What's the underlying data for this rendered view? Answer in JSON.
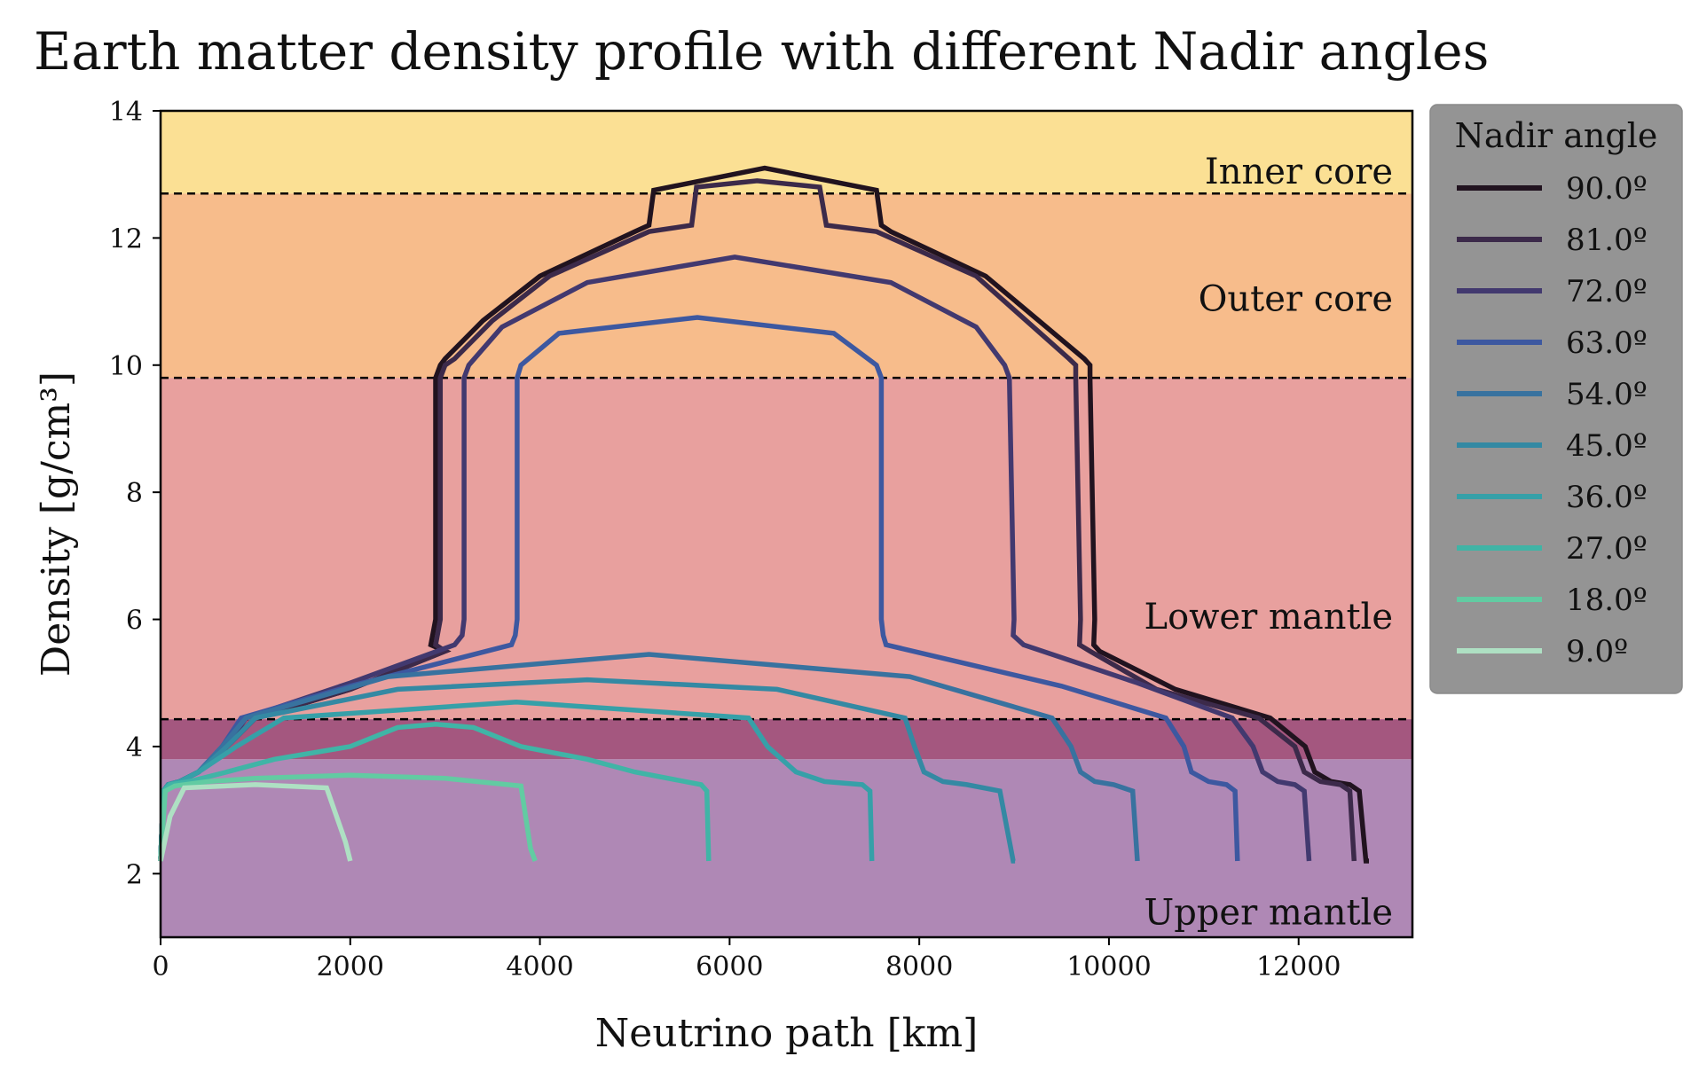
{
  "chart_data": {
    "type": "line",
    "title": "Earth matter density profile with different Nadir angles",
    "xlabel": "Neutrino path [km]",
    "ylabel": "Density [g/cm³]",
    "xlim": [
      0,
      13200
    ],
    "ylim": [
      1,
      14
    ],
    "xticks": [
      0,
      2000,
      4000,
      6000,
      8000,
      10000,
      12000
    ],
    "yticks": [
      2,
      4,
      6,
      8,
      10,
      12,
      14
    ],
    "grid": false,
    "legend": {
      "title": "Nadir angle",
      "placement": "outside-right"
    },
    "layers": [
      {
        "name": "Upper mantle",
        "ymin": 1,
        "ymax": 3.8,
        "color": "#af88b5"
      },
      {
        "name": "",
        "ymin": 3.8,
        "ymax": 4.43,
        "color": "#a4577f"
      },
      {
        "name": "Lower mantle",
        "ymin": 4.43,
        "ymax": 9.8,
        "color": "#e8a09e"
      },
      {
        "name": "Outer core",
        "ymin": 9.8,
        "ymax": 12.7,
        "color": "#f7bc8b"
      },
      {
        "name": "Inner core",
        "ymin": 12.7,
        "ymax": 14,
        "color": "#fbe094"
      }
    ],
    "boundaries": [
      4.43,
      9.8,
      12.7
    ],
    "series": [
      {
        "name": "90.0º",
        "color": "#21131f",
        "x": [
          0,
          30,
          80,
          200,
          400,
          700,
          1000,
          2000,
          3000,
          2850,
          2900,
          2900,
          2950,
          3000,
          3400,
          4000,
          5000,
          5150,
          5200,
          6370,
          7550,
          7600,
          7700,
          8700,
          9740,
          9800,
          9800,
          9850,
          9840,
          9900,
          10700,
          11700,
          12070,
          12170,
          12340,
          12540,
          12640,
          12710,
          12742
        ],
        "y": [
          2.2,
          3.3,
          3.4,
          3.45,
          3.6,
          4.0,
          4.45,
          4.9,
          5.5,
          5.6,
          6.0,
          9.8,
          10.0,
          10.1,
          10.7,
          11.4,
          12.1,
          12.2,
          12.75,
          13.1,
          12.75,
          12.2,
          12.1,
          11.4,
          10.1,
          10.0,
          9.8,
          6.0,
          5.6,
          5.5,
          4.9,
          4.45,
          4.0,
          3.6,
          3.45,
          3.4,
          3.3,
          2.2,
          2.2
        ]
      },
      {
        "name": "81.0º",
        "color": "#3c2a4a",
        "x": [
          0,
          30,
          80,
          200,
          400,
          700,
          1000,
          2000,
          3000,
          2900,
          2950,
          2950,
          3000,
          3100,
          3500,
          4100,
          5150,
          5600,
          5650,
          6290,
          6950,
          7020,
          7550,
          8600,
          9580,
          9650,
          9650,
          9700,
          9690,
          9800,
          10500,
          11580,
          11960,
          12060,
          12230,
          12440,
          12540,
          12585
        ],
        "y": [
          2.2,
          3.3,
          3.4,
          3.45,
          3.6,
          4.0,
          4.45,
          4.9,
          5.5,
          5.6,
          6.0,
          9.8,
          10.0,
          10.1,
          10.7,
          11.4,
          12.1,
          12.2,
          12.8,
          12.9,
          12.8,
          12.2,
          12.1,
          11.4,
          10.1,
          10.0,
          9.8,
          6.0,
          5.6,
          5.5,
          4.9,
          4.45,
          4.0,
          3.6,
          3.45,
          3.4,
          3.3,
          2.2
        ]
      },
      {
        "name": "72.0º",
        "color": "#42396f",
        "x": [
          0,
          30,
          80,
          200,
          400,
          700,
          900,
          2000,
          3100,
          3180,
          3200,
          3200,
          3250,
          3600,
          4500,
          6055,
          7700,
          8600,
          8900,
          8950,
          8950,
          9000,
          8990,
          9100,
          10300,
          11300,
          11520,
          11620,
          11780,
          11960,
          12060,
          12110
        ],
        "y": [
          2.2,
          3.3,
          3.4,
          3.45,
          3.6,
          4.0,
          4.45,
          5.0,
          5.6,
          5.75,
          6.0,
          9.8,
          10.0,
          10.6,
          11.3,
          11.7,
          11.3,
          10.6,
          10.0,
          9.8,
          9.8,
          6.0,
          5.75,
          5.6,
          5.0,
          4.45,
          4.0,
          3.6,
          3.45,
          3.4,
          3.3,
          2.2
        ]
      },
      {
        "name": "63.0º",
        "color": "#3d58a0",
        "x": [
          0,
          30,
          80,
          200,
          400,
          650,
          850,
          2000,
          3700,
          3740,
          3760,
          3760,
          3800,
          4200,
          5660,
          7100,
          7550,
          7600,
          7600,
          7620,
          7650,
          9500,
          10600,
          10790,
          10870,
          11050,
          11240,
          11330,
          11355
        ],
        "y": [
          2.2,
          3.3,
          3.4,
          3.45,
          3.6,
          4.0,
          4.45,
          4.95,
          5.6,
          5.75,
          6.0,
          9.8,
          10.0,
          10.5,
          10.75,
          10.5,
          10.0,
          9.8,
          6.0,
          5.75,
          5.6,
          4.95,
          4.45,
          4.0,
          3.6,
          3.45,
          3.4,
          3.3,
          2.2
        ]
      },
      {
        "name": "54.0º",
        "color": "#38729f",
        "x": [
          0,
          30,
          80,
          200,
          400,
          650,
          900,
          2400,
          5150,
          7900,
          9400,
          9600,
          9700,
          9850,
          10050,
          10250,
          10300,
          10300
        ],
        "y": [
          2.2,
          3.3,
          3.4,
          3.45,
          3.6,
          4.0,
          4.45,
          5.1,
          5.45,
          5.1,
          4.45,
          4.0,
          3.6,
          3.45,
          3.4,
          3.3,
          2.2,
          2.2
        ]
      },
      {
        "name": "45.0º",
        "color": "#3489a3",
        "x": [
          0,
          30,
          80,
          200,
          400,
          700,
          1000,
          2500,
          4500,
          6500,
          7850,
          7950,
          8050,
          8250,
          8500,
          8850,
          8990,
          9010
        ],
        "y": [
          2.2,
          3.3,
          3.4,
          3.45,
          3.6,
          4.0,
          4.45,
          4.9,
          5.05,
          4.9,
          4.45,
          4.0,
          3.6,
          3.45,
          3.4,
          3.3,
          2.2,
          2.2
        ]
      },
      {
        "name": "36.0º",
        "color": "#36a0a8",
        "x": [
          0,
          30,
          80,
          200,
          400,
          800,
          1300,
          3750,
          6200,
          6400,
          6550,
          6700,
          7000,
          7400,
          7480,
          7500
        ],
        "y": [
          2.2,
          3.3,
          3.4,
          3.45,
          3.6,
          4.0,
          4.45,
          4.7,
          4.45,
          4.0,
          3.8,
          3.6,
          3.45,
          3.4,
          3.3,
          2.2
        ]
      },
      {
        "name": "27.0º",
        "color": "#40b4a6",
        "x": [
          0,
          30,
          100,
          300,
          700,
          1200,
          2000,
          2500,
          2900,
          3300,
          3800,
          4500,
          5000,
          5700,
          5760,
          5780
        ],
        "y": [
          2.2,
          3.3,
          3.4,
          3.45,
          3.6,
          3.8,
          4.0,
          4.3,
          4.35,
          4.3,
          4.0,
          3.8,
          3.6,
          3.4,
          3.3,
          2.2
        ]
      },
      {
        "name": "18.0º",
        "color": "#62cba2",
        "x": [
          0,
          50,
          150,
          500,
          1000,
          2000,
          3000,
          3800,
          3900,
          3950
        ],
        "y": [
          2.2,
          3.3,
          3.38,
          3.45,
          3.5,
          3.55,
          3.5,
          3.38,
          2.4,
          2.2
        ]
      },
      {
        "name": "9.0º",
        "color": "#aee0c3",
        "x": [
          0,
          100,
          250,
          1000,
          1750,
          1950,
          2000
        ],
        "y": [
          2.2,
          2.9,
          3.35,
          3.4,
          3.35,
          2.5,
          2.2
        ]
      }
    ]
  }
}
